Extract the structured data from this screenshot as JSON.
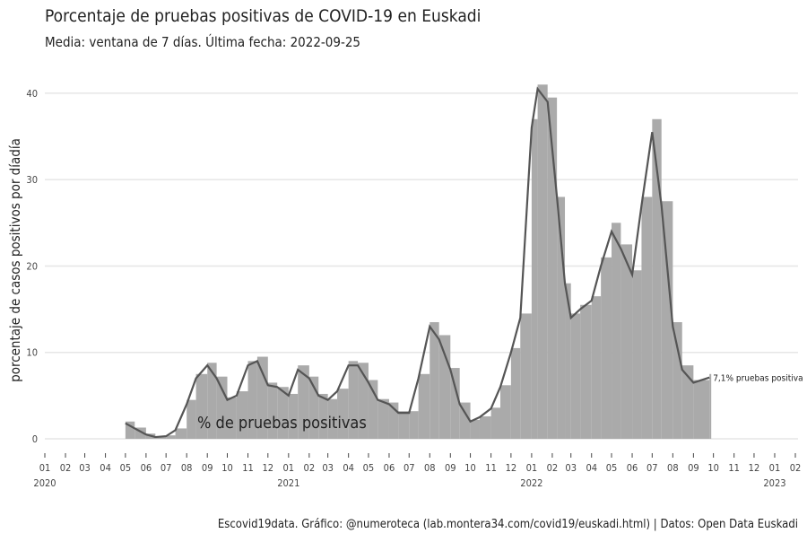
{
  "chart_data": {
    "type": "bar",
    "title": "Porcentaje de pruebas positivas de COVID-19 en Euskadi",
    "subtitle": "Media: ventana de 7 días. Última fecha: 2022-09-25",
    "y_label": "porcentaje de casos positivos por díadía",
    "caption": "Escovid19data. Gráfico: @numeroteca (lab.montera34.com/covid19/euskadi.html) | Datos: Open Data Euskadi",
    "annotation": "% de pruebas positivas",
    "grid": true,
    "xlim": [
      "2020-01-01",
      "2023-02-01"
    ],
    "ylim": [
      0,
      43
    ],
    "yticks": [
      0,
      10,
      20,
      30,
      40
    ],
    "xticks": [
      {
        "value": "2020-01-01",
        "label": "01"
      },
      {
        "value": "2020-02-01",
        "label": "02"
      },
      {
        "value": "2020-03-01",
        "label": "03"
      },
      {
        "value": "2020-04-01",
        "label": "04"
      },
      {
        "value": "2020-05-01",
        "label": "05"
      },
      {
        "value": "2020-06-01",
        "label": "06"
      },
      {
        "value": "2020-07-01",
        "label": "07"
      },
      {
        "value": "2020-08-01",
        "label": "08"
      },
      {
        "value": "2020-09-01",
        "label": "09"
      },
      {
        "value": "2020-10-01",
        "label": "10"
      },
      {
        "value": "2020-11-01",
        "label": "11"
      },
      {
        "value": "2020-12-01",
        "label": "12"
      },
      {
        "value": "2021-01-01",
        "label": "01"
      },
      {
        "value": "2021-02-01",
        "label": "02"
      },
      {
        "value": "2021-03-01",
        "label": "03"
      },
      {
        "value": "2021-04-01",
        "label": "04"
      },
      {
        "value": "2021-05-01",
        "label": "05"
      },
      {
        "value": "2021-06-01",
        "label": "06"
      },
      {
        "value": "2021-07-01",
        "label": "07"
      },
      {
        "value": "2021-08-01",
        "label": "08"
      },
      {
        "value": "2021-09-01",
        "label": "09"
      },
      {
        "value": "2021-10-01",
        "label": "10"
      },
      {
        "value": "2021-11-01",
        "label": "11"
      },
      {
        "value": "2021-12-01",
        "label": "12"
      },
      {
        "value": "2022-01-01",
        "label": "01"
      },
      {
        "value": "2022-02-01",
        "label": "02"
      },
      {
        "value": "2022-03-01",
        "label": "03"
      },
      {
        "value": "2022-04-01",
        "label": "04"
      },
      {
        "value": "2022-05-01",
        "label": "05"
      },
      {
        "value": "2022-06-01",
        "label": "06"
      },
      {
        "value": "2022-07-01",
        "label": "07"
      },
      {
        "value": "2022-08-01",
        "label": "08"
      },
      {
        "value": "2022-09-01",
        "label": "09"
      },
      {
        "value": "2022-10-01",
        "label": "10"
      },
      {
        "value": "2022-11-01",
        "label": "11"
      },
      {
        "value": "2022-12-01",
        "label": "12"
      },
      {
        "value": "2023-01-01",
        "label": "01"
      },
      {
        "value": "2023-02-01",
        "label": "02"
      }
    ],
    "x_year_labels": [
      {
        "value": "2020-01-01",
        "label": "2020"
      },
      {
        "value": "2021-01-01",
        "label": "2021"
      },
      {
        "value": "2022-01-01",
        "label": "2022"
      },
      {
        "value": "2023-01-01",
        "label": "2023"
      }
    ],
    "x": [
      "2020-05-01",
      "2020-05-15",
      "2020-06-01",
      "2020-06-15",
      "2020-07-01",
      "2020-07-15",
      "2020-08-01",
      "2020-08-15",
      "2020-09-01",
      "2020-09-15",
      "2020-10-01",
      "2020-10-15",
      "2020-11-01",
      "2020-11-15",
      "2020-12-01",
      "2020-12-15",
      "2021-01-01",
      "2021-01-15",
      "2021-02-01",
      "2021-02-15",
      "2021-03-01",
      "2021-03-15",
      "2021-04-01",
      "2021-04-15",
      "2021-05-01",
      "2021-05-15",
      "2021-06-01",
      "2021-06-15",
      "2021-07-01",
      "2021-07-15",
      "2021-08-01",
      "2021-08-15",
      "2021-09-01",
      "2021-09-15",
      "2021-10-01",
      "2021-10-15",
      "2021-11-01",
      "2021-11-15",
      "2021-12-01",
      "2021-12-15",
      "2022-01-01",
      "2022-01-10",
      "2022-01-25",
      "2022-02-08",
      "2022-02-20",
      "2022-03-01",
      "2022-03-15",
      "2022-04-01",
      "2022-04-15",
      "2022-05-01",
      "2022-05-15",
      "2022-06-01",
      "2022-06-15",
      "2022-07-01",
      "2022-07-15",
      "2022-08-01",
      "2022-08-15",
      "2022-09-01",
      "2022-09-25"
    ],
    "series": [
      {
        "name": "% de pruebas positivas",
        "type": "bar",
        "color": "#aaaaaa",
        "values": [
          2,
          1.3,
          0.6,
          0.3,
          0.4,
          1.2,
          4.5,
          7.5,
          8.8,
          7.2,
          4.8,
          5.5,
          9,
          9.5,
          6.5,
          6,
          5.2,
          8.5,
          7.2,
          5.2,
          4.6,
          5.8,
          9,
          8.8,
          6.8,
          4.6,
          4.2,
          3.2,
          3.2,
          7.5,
          13.5,
          12,
          8.2,
          4.2,
          2.2,
          2.6,
          3.6,
          6.2,
          10.5,
          14.5,
          37,
          41,
          39.5,
          28,
          18,
          14.5,
          15.5,
          16.5,
          21,
          25,
          22.5,
          19.5,
          28,
          37,
          27.5,
          13.5,
          8.5,
          6.8,
          7.5
        ]
      },
      {
        "name": "Media 7 días",
        "type": "line",
        "color": "#555555",
        "values": [
          1.8,
          1.2,
          0.5,
          0.2,
          0.3,
          1,
          4,
          7,
          8.5,
          7,
          4.5,
          5,
          8.5,
          9,
          6.2,
          6,
          5,
          8,
          7,
          5,
          4.5,
          5.5,
          8.5,
          8.5,
          6.5,
          4.5,
          4,
          3,
          3,
          7,
          13,
          11.5,
          8,
          4,
          2,
          2.5,
          3.5,
          6,
          10,
          14,
          36,
          40.5,
          39,
          28,
          18,
          14,
          15,
          16,
          20,
          24,
          22,
          19,
          27,
          35.5,
          27,
          13,
          8,
          6.5,
          7.1
        ],
        "value_labels": [
          null,
          null,
          null,
          null,
          null,
          null,
          null,
          null,
          null,
          null,
          null,
          null,
          null,
          null,
          null,
          null,
          null,
          null,
          null,
          null,
          null,
          null,
          null,
          null,
          null,
          null,
          null,
          null,
          null,
          null,
          null,
          null,
          null,
          null,
          null,
          null,
          null,
          null,
          null,
          null,
          null,
          null,
          null,
          null,
          null,
          null,
          null,
          null,
          null,
          null,
          null,
          null,
          null,
          null,
          null,
          null,
          null,
          null,
          "7,1% pruebas positiva"
        ]
      }
    ]
  }
}
